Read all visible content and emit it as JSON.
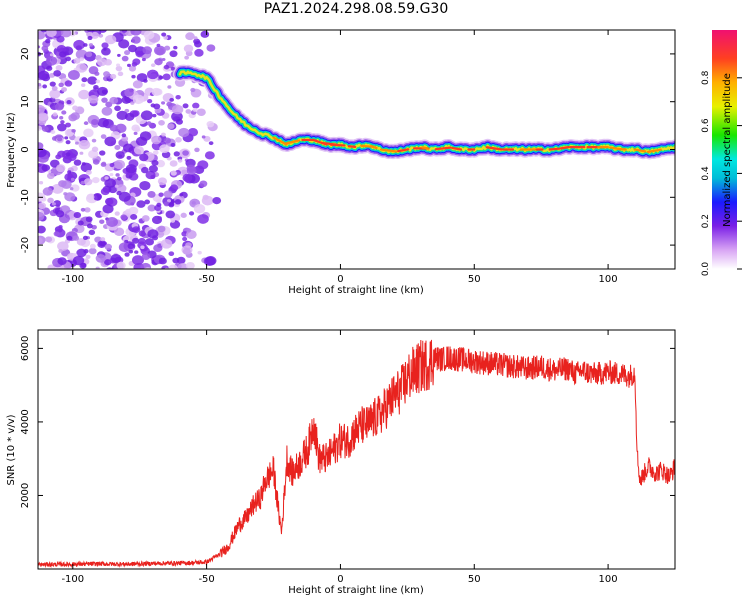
{
  "title": "PAZ1.2024.298.08.59.G30",
  "chart_data": [
    {
      "type": "heatmap",
      "xlabel": "Height of straight line (km)",
      "ylabel": "Frequency (Hz)",
      "xlim": [
        -113,
        125
      ],
      "ylim": [
        -25,
        25
      ],
      "xticks": [
        -100,
        -50,
        0,
        50,
        100
      ],
      "yticks": [
        -20,
        -10,
        0,
        10,
        20
      ],
      "colorbar": {
        "label": "Normalized spectral amplitude",
        "range": [
          0,
          1
        ],
        "ticks": [
          "0.0",
          "0.2",
          "0.4",
          "0.6",
          "0.8"
        ]
      },
      "trace": {
        "x": [
          -60,
          -55,
          -50,
          -45,
          -40,
          -35,
          -30,
          -25,
          -20,
          -15,
          -10,
          -5,
          0,
          5,
          10,
          15,
          20,
          25,
          30,
          35,
          40,
          45,
          50,
          55,
          60,
          65,
          70,
          75,
          80,
          85,
          90,
          95,
          100,
          105,
          110,
          115,
          120,
          125
        ],
        "frequency": [
          16,
          16,
          15,
          11,
          7.5,
          5,
          3.5,
          2.5,
          1,
          2,
          2,
          1,
          1,
          0.5,
          1,
          0,
          -0.5,
          0,
          0.5,
          0,
          0.5,
          0,
          0,
          0.5,
          0,
          0,
          0,
          0,
          0,
          0.5,
          0.5,
          0.5,
          0.5,
          0,
          0,
          -0.5,
          0,
          0.5
        ]
      },
      "noise_region": [
        -113,
        -47
      ]
    },
    {
      "type": "line",
      "xlabel": "Height of straight line (km)",
      "ylabel": "SNR (10 * v/v)",
      "xlim": [
        -113,
        125
      ],
      "ylim": [
        0,
        6500
      ],
      "xticks": [
        -100,
        -50,
        0,
        50,
        100
      ],
      "yticks": [
        2000,
        4000,
        6000
      ],
      "line_color": "#e8221e",
      "series": [
        {
          "x": [
            -113,
            -100,
            -90,
            -80,
            -70,
            -60,
            -55,
            -50,
            -45,
            -42,
            -40,
            -38,
            -35,
            -32,
            -30,
            -28,
            -25,
            -23,
            -22,
            -20,
            -18,
            -15,
            -12,
            -10,
            -8,
            -5,
            -2,
            0,
            3,
            5,
            8,
            10,
            13,
            15,
            18,
            20,
            23,
            25,
            28,
            30,
            33,
            35,
            38,
            40,
            45,
            50,
            55,
            60,
            65,
            70,
            75,
            80,
            85,
            88,
            90,
            92,
            95,
            100,
            105,
            108,
            110,
            111,
            112,
            115,
            118,
            120,
            123,
            125
          ],
          "values": [
            120,
            130,
            140,
            130,
            150,
            160,
            170,
            190,
            400,
            600,
            900,
            1200,
            1400,
            1800,
            1900,
            2400,
            2700,
            1500,
            1000,
            3000,
            2600,
            2900,
            3300,
            4000,
            3000,
            3000,
            3300,
            3500,
            3500,
            3700,
            3900,
            3900,
            4100,
            4200,
            4500,
            4700,
            4900,
            5200,
            5400,
            5500,
            5600,
            5750,
            5700,
            5750,
            5700,
            5650,
            5600,
            5550,
            5500,
            5450,
            5500,
            5400,
            5450,
            5300,
            5400,
            5350,
            5300,
            5350,
            5300,
            5250,
            5350,
            3000,
            2400,
            2800,
            2600,
            2700,
            2500,
            2800
          ]
        }
      ]
    }
  ]
}
